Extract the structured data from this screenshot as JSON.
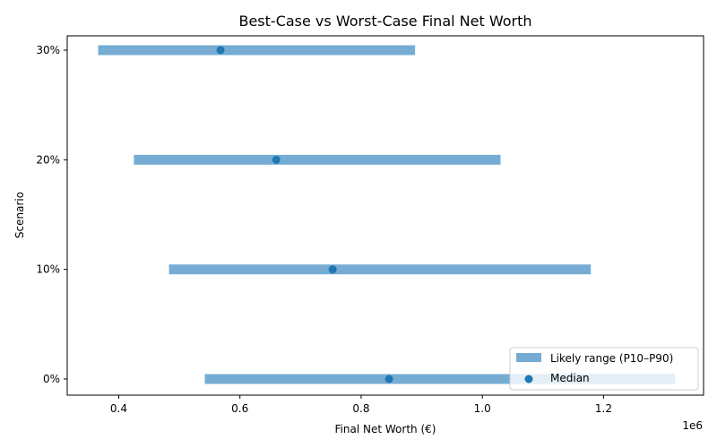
{
  "chart_data": {
    "type": "range",
    "title": "Best-Case vs Worst-Case Final Net Worth",
    "xlabel": "Final Net Worth (€)",
    "ylabel": "Scenario",
    "x_offset_label": "1e6",
    "xlim": [
      0.315,
      1.365
    ],
    "xticks": [
      0.4,
      0.6,
      0.8,
      1.0,
      1.2
    ],
    "xtick_labels": [
      "0.4",
      "0.6",
      "0.8",
      "1.0",
      "1.2"
    ],
    "categories": [
      "0%",
      "10%",
      "20%",
      "30%"
    ],
    "series": [
      {
        "name": "Likely range (P10–P90)",
        "low": [
          0.542,
          0.483,
          0.425,
          0.366
        ],
        "high": [
          1.318,
          1.179,
          1.03,
          0.889
        ],
        "color": "#76acd3"
      },
      {
        "name": "Median",
        "values": [
          0.846,
          0.753,
          0.66,
          0.568
        ],
        "color": "#1f77b4"
      }
    ],
    "legend": "bottom-right",
    "grid": false
  }
}
